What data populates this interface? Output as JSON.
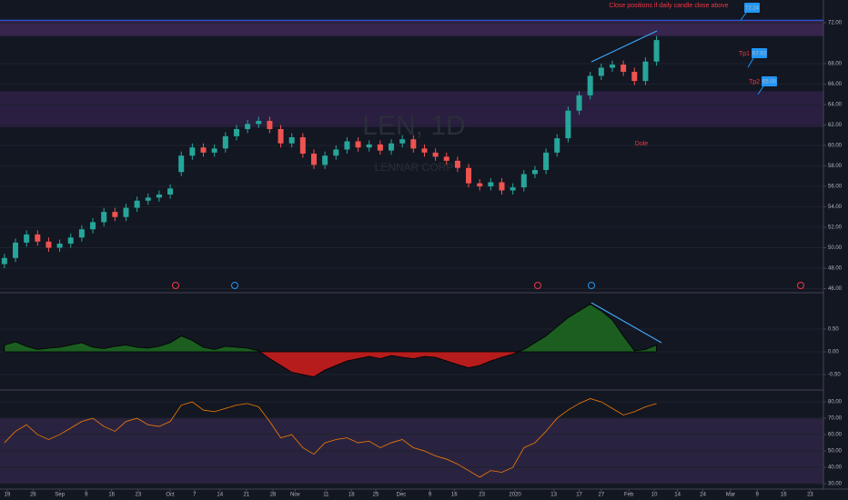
{
  "chart_data": [
    {
      "type": "candlestick",
      "name": "LEN, 1D",
      "subtitle": "LENNAR CORP",
      "open": [
        48.4,
        49.0,
        50.5,
        51.3,
        50.6,
        50.0,
        50.4,
        51.0,
        51.8,
        52.5,
        53.5,
        53.0,
        53.9,
        54.6,
        54.9,
        55.2,
        57.4,
        59.0,
        59.8,
        59.3,
        59.7,
        60.9,
        61.6,
        62.1,
        62.4,
        61.6,
        60.2,
        60.8,
        59.2,
        58.1,
        59.0,
        59.6,
        60.4,
        59.8,
        60.1,
        59.5,
        60.2,
        60.6,
        59.7,
        59.3,
        58.9,
        58.5,
        57.8,
        56.3,
        56.0,
        56.4,
        55.6,
        55.9,
        57.2,
        57.6,
        59.3,
        60.7,
        63.4,
        64.9,
        66.8,
        67.6,
        67.9,
        67.2,
        66.3,
        68.2
      ],
      "high": [
        49.4,
        50.9,
        51.7,
        51.7,
        51.0,
        50.8,
        51.4,
        52.2,
        52.9,
        53.9,
        53.9,
        54.3,
        55.0,
        55.3,
        55.6,
        56.2,
        59.4,
        60.2,
        60.2,
        60.1,
        61.3,
        62.0,
        62.5,
        62.8,
        62.8,
        62.0,
        61.2,
        61.2,
        59.6,
        59.4,
        60.0,
        60.8,
        60.8,
        60.5,
        60.5,
        60.6,
        61.0,
        61.0,
        60.1,
        59.7,
        59.3,
        58.9,
        58.2,
        56.7,
        56.8,
        56.8,
        56.3,
        57.6,
        58.0,
        59.7,
        61.1,
        63.8,
        65.3,
        67.2,
        68.0,
        68.3,
        68.3,
        67.6,
        68.6,
        70.7
      ],
      "low": [
        48.0,
        48.6,
        50.1,
        50.2,
        49.6,
        49.6,
        50.0,
        50.6,
        51.4,
        52.1,
        52.6,
        52.6,
        53.5,
        54.2,
        54.5,
        54.8,
        57.0,
        58.6,
        58.9,
        58.9,
        59.3,
        60.5,
        61.2,
        61.7,
        61.2,
        59.8,
        59.8,
        58.8,
        57.7,
        57.7,
        58.6,
        59.2,
        59.4,
        59.4,
        59.1,
        59.1,
        59.8,
        59.3,
        58.9,
        58.5,
        58.1,
        57.4,
        55.9,
        55.6,
        55.6,
        55.2,
        55.2,
        55.5,
        56.8,
        57.2,
        58.9,
        60.3,
        63.0,
        64.5,
        66.4,
        67.2,
        66.8,
        65.9,
        65.9,
        67.8
      ],
      "close": [
        49.0,
        50.5,
        51.3,
        50.6,
        50.0,
        50.4,
        51.0,
        51.8,
        52.5,
        53.5,
        53.0,
        53.9,
        54.6,
        54.9,
        55.2,
        55.8,
        59.0,
        59.8,
        59.3,
        59.7,
        60.9,
        61.6,
        62.1,
        62.4,
        61.6,
        60.2,
        60.8,
        59.2,
        58.1,
        59.0,
        59.6,
        60.4,
        59.8,
        60.1,
        59.5,
        60.2,
        60.6,
        59.7,
        59.3,
        58.9,
        58.5,
        57.8,
        56.3,
        56.0,
        56.4,
        55.6,
        55.9,
        57.2,
        57.6,
        59.3,
        60.7,
        63.4,
        64.9,
        66.8,
        67.6,
        67.9,
        67.2,
        66.3,
        68.2,
        70.3
      ],
      "up_color": "#26a69a",
      "down_color": "#ef5350",
      "xlim": [
        -0.4,
        74.1
      ],
      "ylim": [
        45.6,
        73.33
      ],
      "yticks": [
        {
          "value": 46,
          "label": "46.00"
        },
        {
          "value": 48,
          "label": "48.00"
        },
        {
          "value": 50,
          "label": "50.00"
        },
        {
          "value": 52,
          "label": "52.00"
        },
        {
          "value": 54,
          "label": "54.00"
        },
        {
          "value": 56,
          "label": "56.00"
        },
        {
          "value": 58,
          "label": "58.00"
        },
        {
          "value": 60,
          "label": "60.00"
        },
        {
          "value": 62,
          "label": "62.00"
        },
        {
          "value": 64,
          "label": "64.00"
        },
        {
          "value": 66,
          "label": "66.00"
        },
        {
          "value": 68,
          "label": "68.00"
        },
        {
          "value": 72,
          "label": "72.00"
        }
      ],
      "zones": [
        {
          "from": 70.7,
          "to": 72.24,
          "color": "#3c2752"
        },
        {
          "from": 61.8,
          "to": 65.3,
          "color": "#2d1f45"
        }
      ],
      "levels": [
        {
          "label": "72.24",
          "value": 72.24
        },
        {
          "name": "Tp1",
          "label": "67.63",
          "value": 67.63
        },
        {
          "name": "Tp2",
          "label": "65.00",
          "value": 65.0
        }
      ],
      "annotations": [
        "Close positions if daily candle close above",
        "Dole"
      ]
    },
    {
      "type": "area",
      "values": [
        0.15,
        0.22,
        0.12,
        0.05,
        0.08,
        0.1,
        0.15,
        0.2,
        0.1,
        0.07,
        0.12,
        0.15,
        0.1,
        0.08,
        0.12,
        0.2,
        0.35,
        0.25,
        0.1,
        0.05,
        0.12,
        0.1,
        0.08,
        0.02,
        -0.15,
        -0.3,
        -0.45,
        -0.5,
        -0.55,
        -0.4,
        -0.3,
        -0.2,
        -0.15,
        -0.1,
        -0.15,
        -0.08,
        -0.12,
        -0.15,
        -0.1,
        -0.12,
        -0.2,
        -0.28,
        -0.35,
        -0.3,
        -0.2,
        -0.12,
        -0.05,
        0.05,
        0.2,
        0.35,
        0.55,
        0.75,
        0.9,
        1.05,
        0.9,
        0.7,
        0.35,
        0.02,
        0.05,
        0.15
      ],
      "pos_color": "#1b5e20",
      "neg_color": "#b71c1c",
      "xlim": [
        -0.4,
        74.1
      ],
      "ylim": [
        -0.82,
        1.24
      ],
      "yticks": [
        {
          "value": 0.5,
          "label": "0.50"
        },
        {
          "value": 0,
          "label": "0.00"
        },
        {
          "value": -0.5,
          "label": "-0.50"
        }
      ]
    },
    {
      "type": "line",
      "values": [
        55,
        62,
        66,
        60,
        57,
        60,
        64,
        68,
        70,
        65,
        62,
        68,
        70,
        66,
        65,
        68,
        78,
        80,
        75,
        74,
        76,
        78,
        79,
        77,
        68,
        58,
        60,
        52,
        48,
        55,
        57,
        58,
        55,
        56,
        52,
        55,
        57,
        52,
        50,
        47,
        45,
        42,
        38,
        34,
        38,
        37,
        40,
        52,
        55,
        62,
        70,
        75,
        79,
        82,
        80,
        76,
        72,
        74,
        77,
        79
      ],
      "color": "#f57c00",
      "band": [
        30,
        70
      ],
      "band_color": "#2a2340",
      "xlim": [
        -0.4,
        74.1
      ],
      "ylim": [
        26.7,
        86.7
      ],
      "yticks": [
        {
          "value": 80,
          "label": "80.00"
        },
        {
          "value": 70,
          "label": "70.00"
        },
        {
          "value": 60,
          "label": "60.00"
        },
        {
          "value": 50,
          "label": "50.00"
        },
        {
          "value": 40,
          "label": "40.00"
        },
        {
          "value": 30,
          "label": "30.00"
        }
      ],
      "xticks": [
        {
          "value": 0.25,
          "label": "19"
        },
        {
          "value": 2.6,
          "label": "26"
        },
        {
          "value": 5.0,
          "label": "Sep"
        },
        {
          "value": 7.4,
          "label": "9"
        },
        {
          "value": 9.7,
          "label": "16"
        },
        {
          "value": 12.1,
          "label": "23"
        },
        {
          "value": 15.0,
          "label": "Oct"
        },
        {
          "value": 17.2,
          "label": "7"
        },
        {
          "value": 19.5,
          "label": "14"
        },
        {
          "value": 21.9,
          "label": "21"
        },
        {
          "value": 24.3,
          "label": "28"
        },
        {
          "value": 26.3,
          "label": "Nov"
        },
        {
          "value": 29.1,
          "label": "11"
        },
        {
          "value": 31.4,
          "label": "18"
        },
        {
          "value": 33.6,
          "label": "25"
        },
        {
          "value": 35.9,
          "label": "Dec"
        },
        {
          "value": 38.5,
          "label": "9"
        },
        {
          "value": 40.7,
          "label": "16"
        },
        {
          "value": 43.2,
          "label": "23"
        },
        {
          "value": 46.2,
          "label": "2020"
        },
        {
          "value": 49.7,
          "label": "13"
        },
        {
          "value": 52.0,
          "label": "17"
        },
        {
          "value": 54.0,
          "label": "27"
        },
        {
          "value": 56.5,
          "label": "Feb"
        },
        {
          "value": 58.8,
          "label": "10"
        },
        {
          "value": 60.9,
          "label": "14"
        },
        {
          "value": 63.2,
          "label": "24"
        },
        {
          "value": 65.7,
          "label": "Mar"
        },
        {
          "value": 68.1,
          "label": "9"
        },
        {
          "value": 70.5,
          "label": "16"
        },
        {
          "value": 72.9,
          "label": "23"
        }
      ]
    }
  ]
}
